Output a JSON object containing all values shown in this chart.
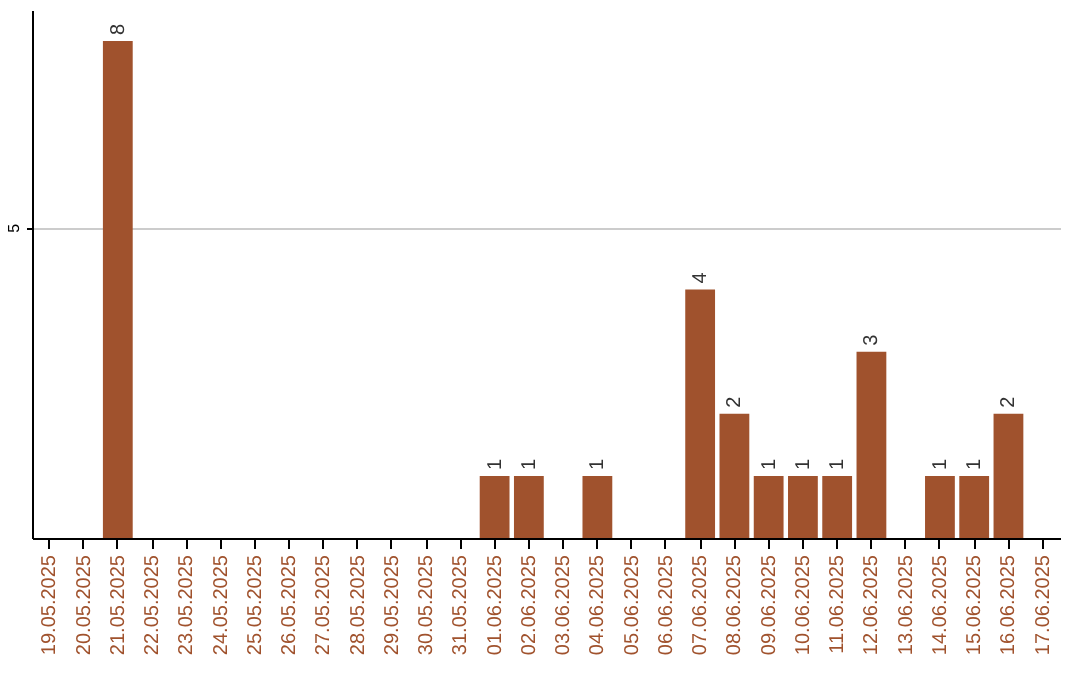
{
  "chart_data": {
    "type": "bar",
    "categories": [
      "19.05.2025",
      "20.05.2025",
      "21.05.2025",
      "22.05.2025",
      "23.05.2025",
      "24.05.2025",
      "25.05.2025",
      "26.05.2025",
      "27.05.2025",
      "28.05.2025",
      "29.05.2025",
      "30.05.2025",
      "31.05.2025",
      "01.06.2025",
      "02.06.2025",
      "03.06.2025",
      "04.06.2025",
      "05.06.2025",
      "06.06.2025",
      "07.06.2025",
      "08.06.2025",
      "09.06.2025",
      "10.06.2025",
      "11.06.2025",
      "12.06.2025",
      "13.06.2025",
      "14.06.2025",
      "15.06.2025",
      "16.06.2025",
      "17.06.2025"
    ],
    "values": [
      0,
      0,
      8,
      0,
      0,
      0,
      0,
      0,
      0,
      0,
      0,
      0,
      0,
      1,
      1,
      0,
      1,
      0,
      0,
      4,
      2,
      1,
      1,
      1,
      3,
      0,
      1,
      1,
      2,
      0
    ],
    "value_labels": [
      null,
      null,
      "8",
      null,
      null,
      null,
      null,
      null,
      null,
      null,
      null,
      null,
      null,
      "1",
      "1",
      null,
      "1",
      null,
      null,
      "4",
      "2",
      "1",
      "1",
      "1",
      "3",
      null,
      "1",
      "1",
      "2",
      null
    ],
    "color": "#a0522d",
    "ylim": [
      0,
      8.5
    ],
    "yticks": [
      5
    ],
    "grid": "y"
  }
}
